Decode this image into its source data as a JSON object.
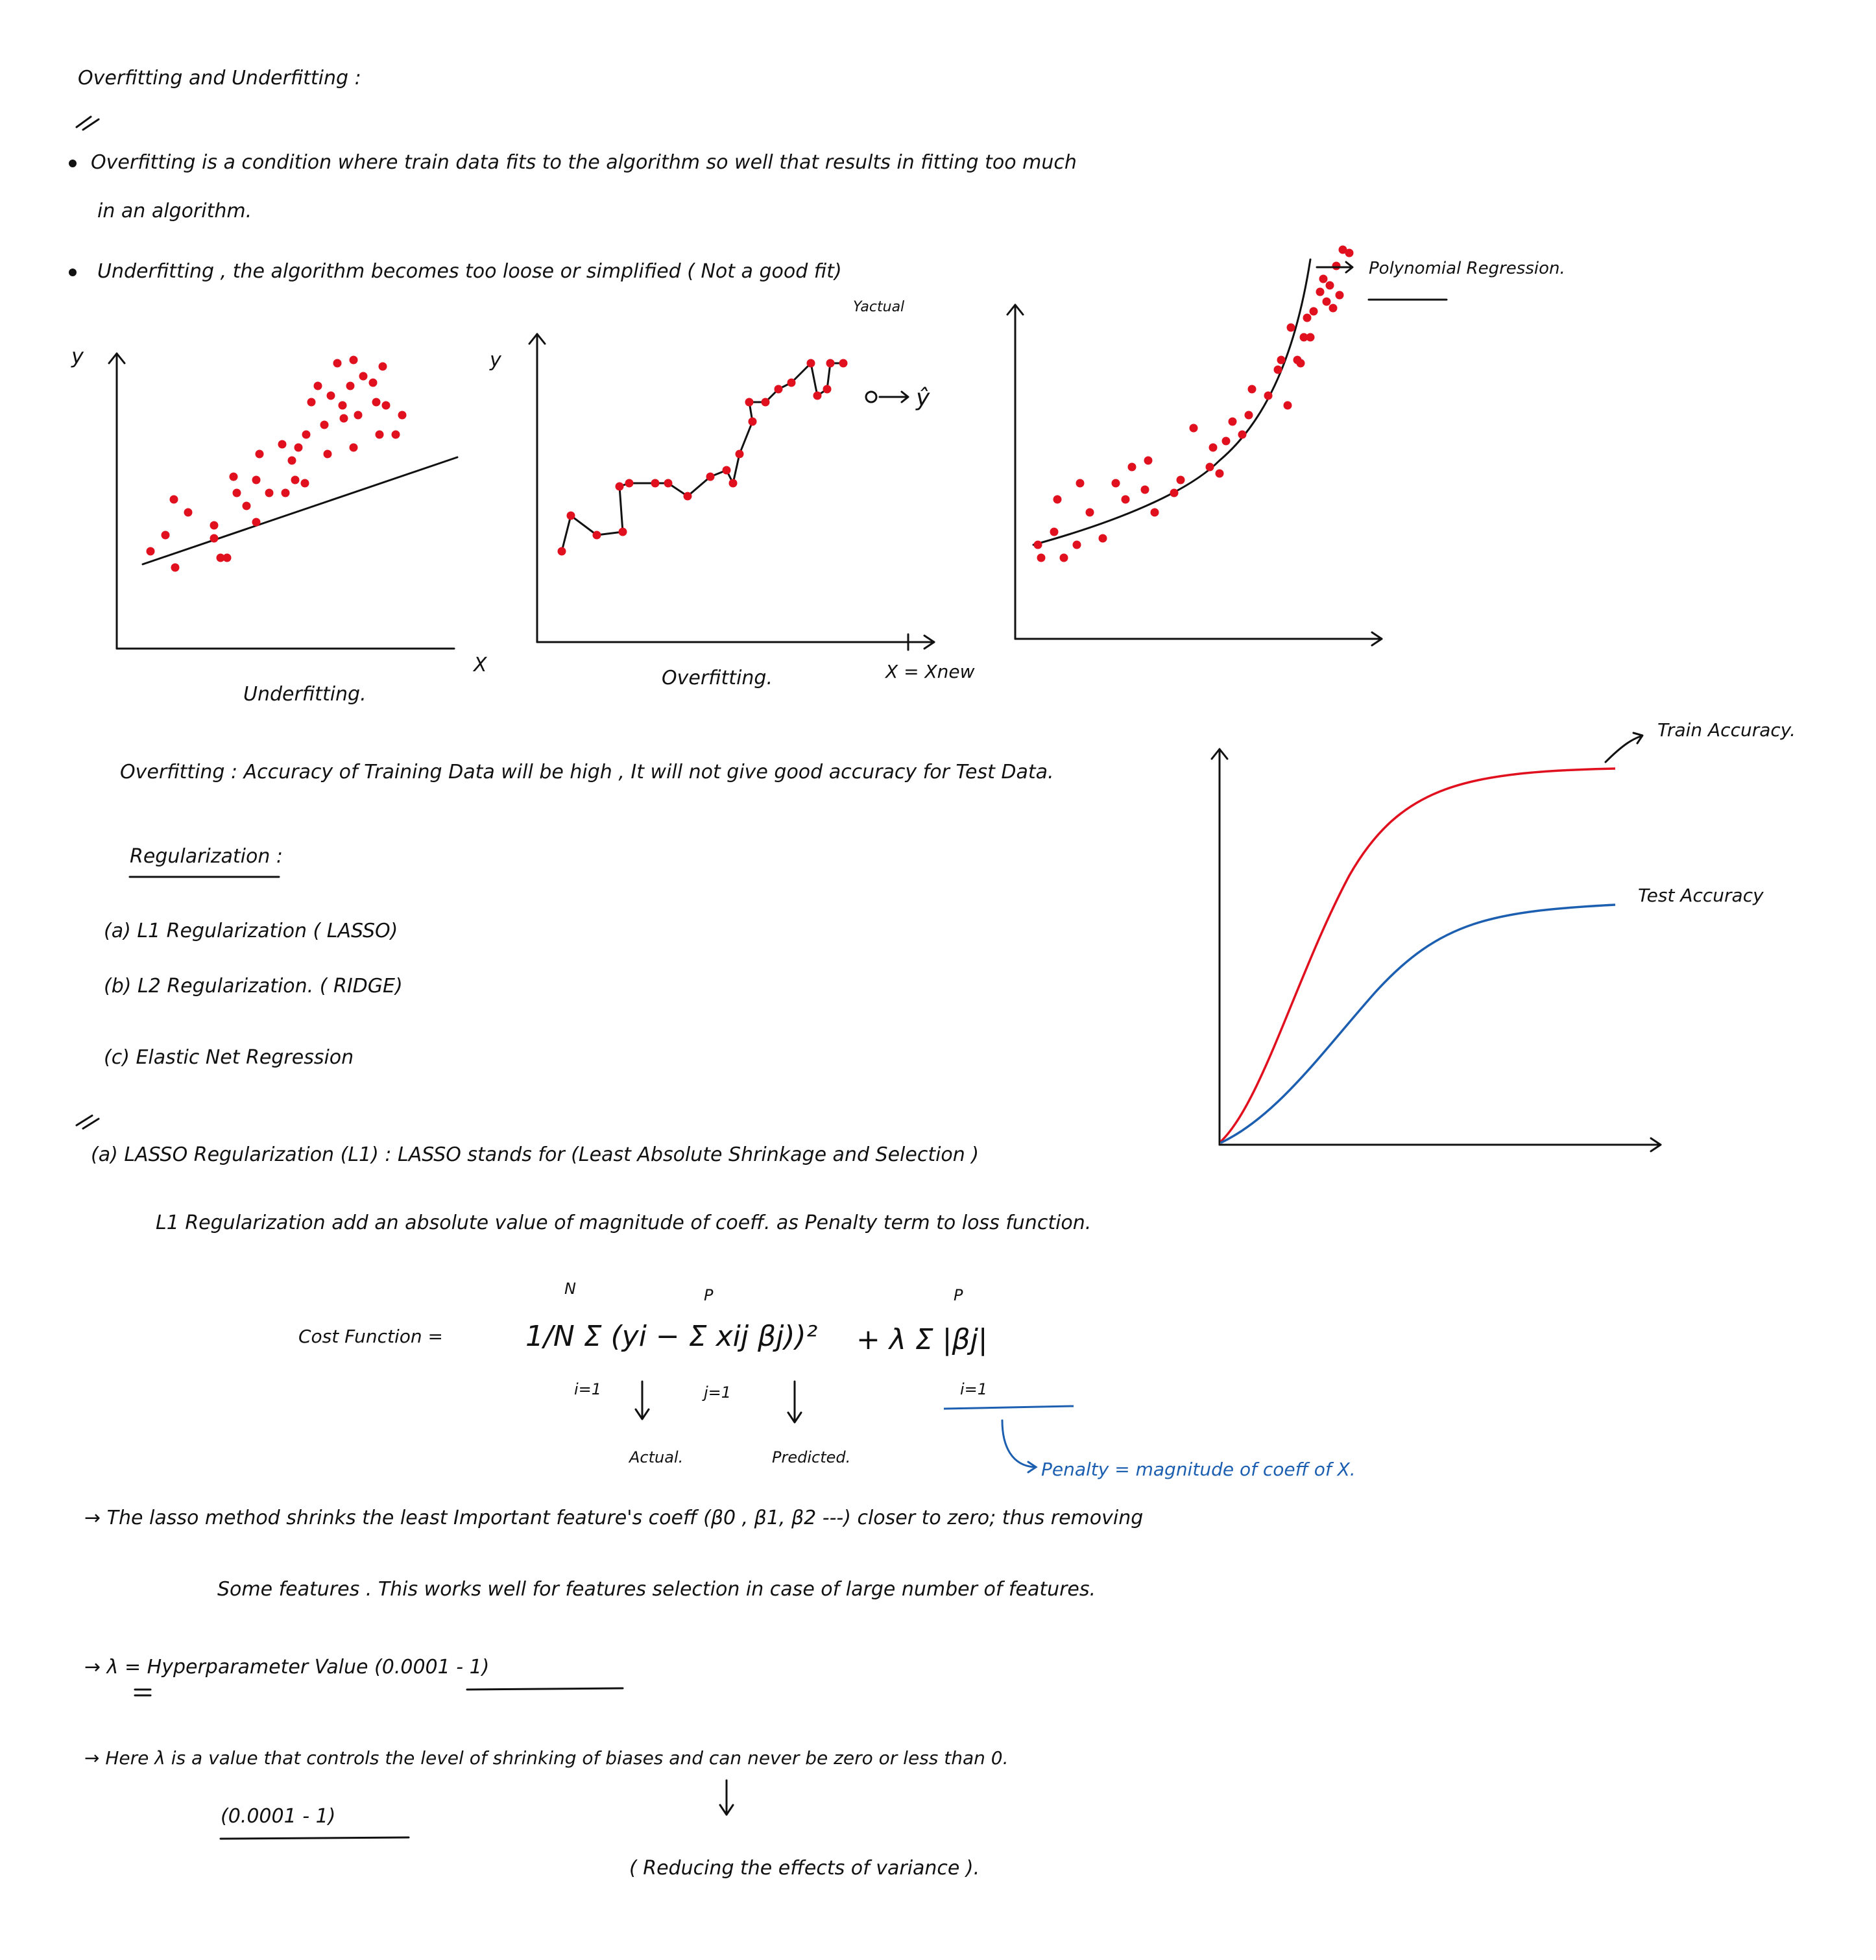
{
  "title": "Overfitting and Underfitting :",
  "definitions": {
    "overfitting": "Overfitting is a condition where train data fits to the algorithm so well that results in fitting too much",
    "overfitting_cont": "in an algorithm.",
    "underfitting": "Underfitting , the algorithm becomes too loose or simplified ( Not a good fit)"
  },
  "plots": {
    "underfit": {
      "caption": "Underfitting.",
      "x_label": "X",
      "y_label": "y"
    },
    "overfit": {
      "caption": "Overfitting.",
      "y_label": "y",
      "x_new": "X = Xnew",
      "y_actual": "Yactual",
      "y_hat": "ŷ"
    },
    "poly": {
      "label": "Polynomial Regression."
    }
  },
  "accuracy_chart": {
    "train_label": "Train Accuracy.",
    "test_label": "Test Accuracy"
  },
  "overfitting_note": "Overfitting : Accuracy of Training Data will be high , It will not give good accuracy for Test Data.",
  "regularization": {
    "heading": "Regularization :",
    "items": [
      "(a) L1 Regularization ( LASSO)",
      "(b) L2 Regularization. ( RIDGE)",
      "(c) Elastic Net Regression"
    ]
  },
  "lasso": {
    "heading": "(a) LASSO Regularization (L1) : LASSO stands for (Least Absolute Shrinkage and Selection )",
    "desc": "L1 Regularization add an absolute value of magnitude of coeff. as Penalty term to loss function.",
    "cost_label": "Cost Function =",
    "formula_main": "1/N Σ (yi − Σ xij βj))²",
    "formula_sub_i": "i=1",
    "formula_sub_j": "j=1",
    "formula_N": "N",
    "formula_P": "P",
    "penalty_part": "+ λ Σ |βj|",
    "actual": "Actual.",
    "predicted": "Predicted.",
    "penalty_note": "Penalty = magnitude of coeff of X."
  },
  "notes": [
    "→ The lasso method shrinks the least Important feature's coeff (β0 , β1, β2 ---) closer to zero; thus removing",
    "Some features . This works well for features selection in case of large number of features.",
    "→ λ = Hyperparameter Value (0.0001 - 1)",
    "→ Here λ is a value that controls the level of shrinking of biases and can never be zero or less than 0.",
    "(0.0001 - 1)",
    "( Reducing the effects of variance )."
  ],
  "colors": {
    "ink": "#111111",
    "dots": "#e0101e",
    "train": "#e0101e",
    "test": "#1c5fb0"
  }
}
